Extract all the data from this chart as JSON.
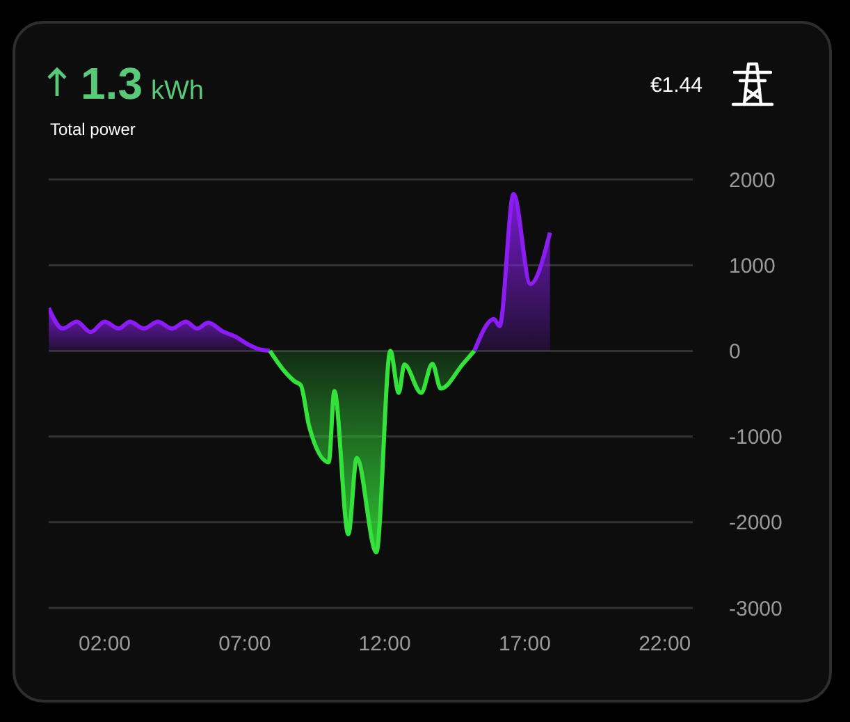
{
  "chart_data": {
    "type": "area",
    "title": "1.3 kWh",
    "subtitle": "Total power",
    "annotations": [
      "€1.44"
    ],
    "xlim": [
      0,
      23
    ],
    "xticks": [
      {
        "value": 2,
        "label": "02:00"
      },
      {
        "value": 7,
        "label": "07:00"
      },
      {
        "value": 12,
        "label": "12:00"
      },
      {
        "value": 17,
        "label": "17:00"
      },
      {
        "value": 22,
        "label": "22:00"
      }
    ],
    "ylim": [
      -3000,
      2000
    ],
    "yticks": [
      -3000,
      -2000,
      -1000,
      0,
      1000,
      2000
    ],
    "grid": "y",
    "series": [
      {
        "color": "#8b1cf2",
        "x": [
          0,
          0.5,
          1.0,
          1.5,
          2.0,
          2.5,
          2.9,
          3.4,
          3.9,
          4.4,
          4.9,
          5.3,
          5.7,
          6.2,
          6.7,
          7.1,
          7.5,
          7.9
        ],
        "values": [
          500,
          260,
          340,
          220,
          340,
          260,
          340,
          260,
          340,
          260,
          340,
          260,
          330,
          230,
          160,
          80,
          20,
          0
        ]
      },
      {
        "color": "#35e23b",
        "x": [
          7.9,
          8.4,
          8.8,
          9.0,
          9.3,
          10.0,
          10.2,
          10.7,
          11.0,
          11.7,
          12.2,
          12.5,
          12.7,
          13.3,
          13.7,
          14.0,
          14.8,
          15.2
        ],
        "values": [
          0,
          -230,
          -360,
          -400,
          -880,
          -1300,
          -470,
          -2140,
          -1250,
          -2350,
          0,
          -490,
          -160,
          -490,
          -150,
          -440,
          -150,
          0
        ]
      },
      {
        "color": "#8b1cf2",
        "x": [
          15.2,
          15.9,
          16.1,
          16.6,
          17.2,
          17.9
        ],
        "values": [
          0,
          370,
          290,
          1830,
          780,
          1380
        ]
      }
    ]
  }
}
